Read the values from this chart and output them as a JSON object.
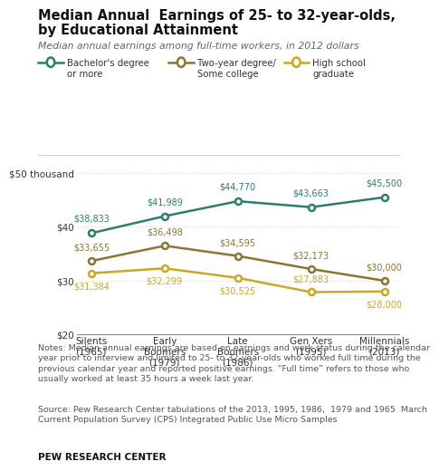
{
  "title_line1": "Median Annual  Earnings of 25- to 32-year-olds,",
  "title_line2": "by Educational Attainment",
  "subtitle": "Median annual earnings among full-time workers, in 2012 dollars",
  "categories": [
    "Silents\n(1965)",
    "Early\nBoomers\n(1979)",
    "Late\nBoomers\n(1986)",
    "Gen Xers\n(1995)",
    "Millennials\n(2013)"
  ],
  "bachelor": [
    38833,
    41989,
    44770,
    43663,
    45500
  ],
  "two_year": [
    33655,
    36498,
    34595,
    32173,
    30000
  ],
  "high_school": [
    31384,
    32299,
    30525,
    27883,
    28000
  ],
  "bachelor_color": "#2e7d6e",
  "two_year_color": "#8b7535",
  "high_school_color": "#c9a827",
  "bachelor_labels": [
    "$38,833",
    "$41,989",
    "$44,770",
    "$43,663",
    "$45,500"
  ],
  "two_year_labels": [
    "$33,655",
    "$36,498",
    "$34,595",
    "$32,173",
    "$30,000"
  ],
  "high_school_labels": [
    "$31,384",
    "$32,299",
    "$30,525",
    "$27,883",
    "$28,000"
  ],
  "ylim": [
    20000,
    52000
  ],
  "yticks": [
    20000,
    30000,
    40000,
    50000
  ],
  "ytick_labels": [
    "$20",
    "$30",
    "$40",
    "$50 thousand"
  ],
  "notes": "Notes: Median annual earnings are based on earnings and work status during the calendar\nyear prior to interview and limited to 25- to 32-year-olds who worked full time during the\nprevious calendar year and reported positive earnings. “Full time” refers to those who\nusually worked at least 35 hours a week last year.",
  "source": "Source: Pew Research Center tabulations of the 2013, 1995, 1986,  1979 and 1965  March\nCurrent Population Survey (CPS) Integrated Public Use Micro Samples",
  "footer": "PEW RESEARCH CENTER",
  "legend_labels": [
    "Bachelor's degree\nor more",
    "Two-year degree/\nSome college",
    "High school\ngraduate"
  ],
  "bg_color": "#ffffff",
  "text_color": "#444444",
  "grid_color": "#cccccc"
}
